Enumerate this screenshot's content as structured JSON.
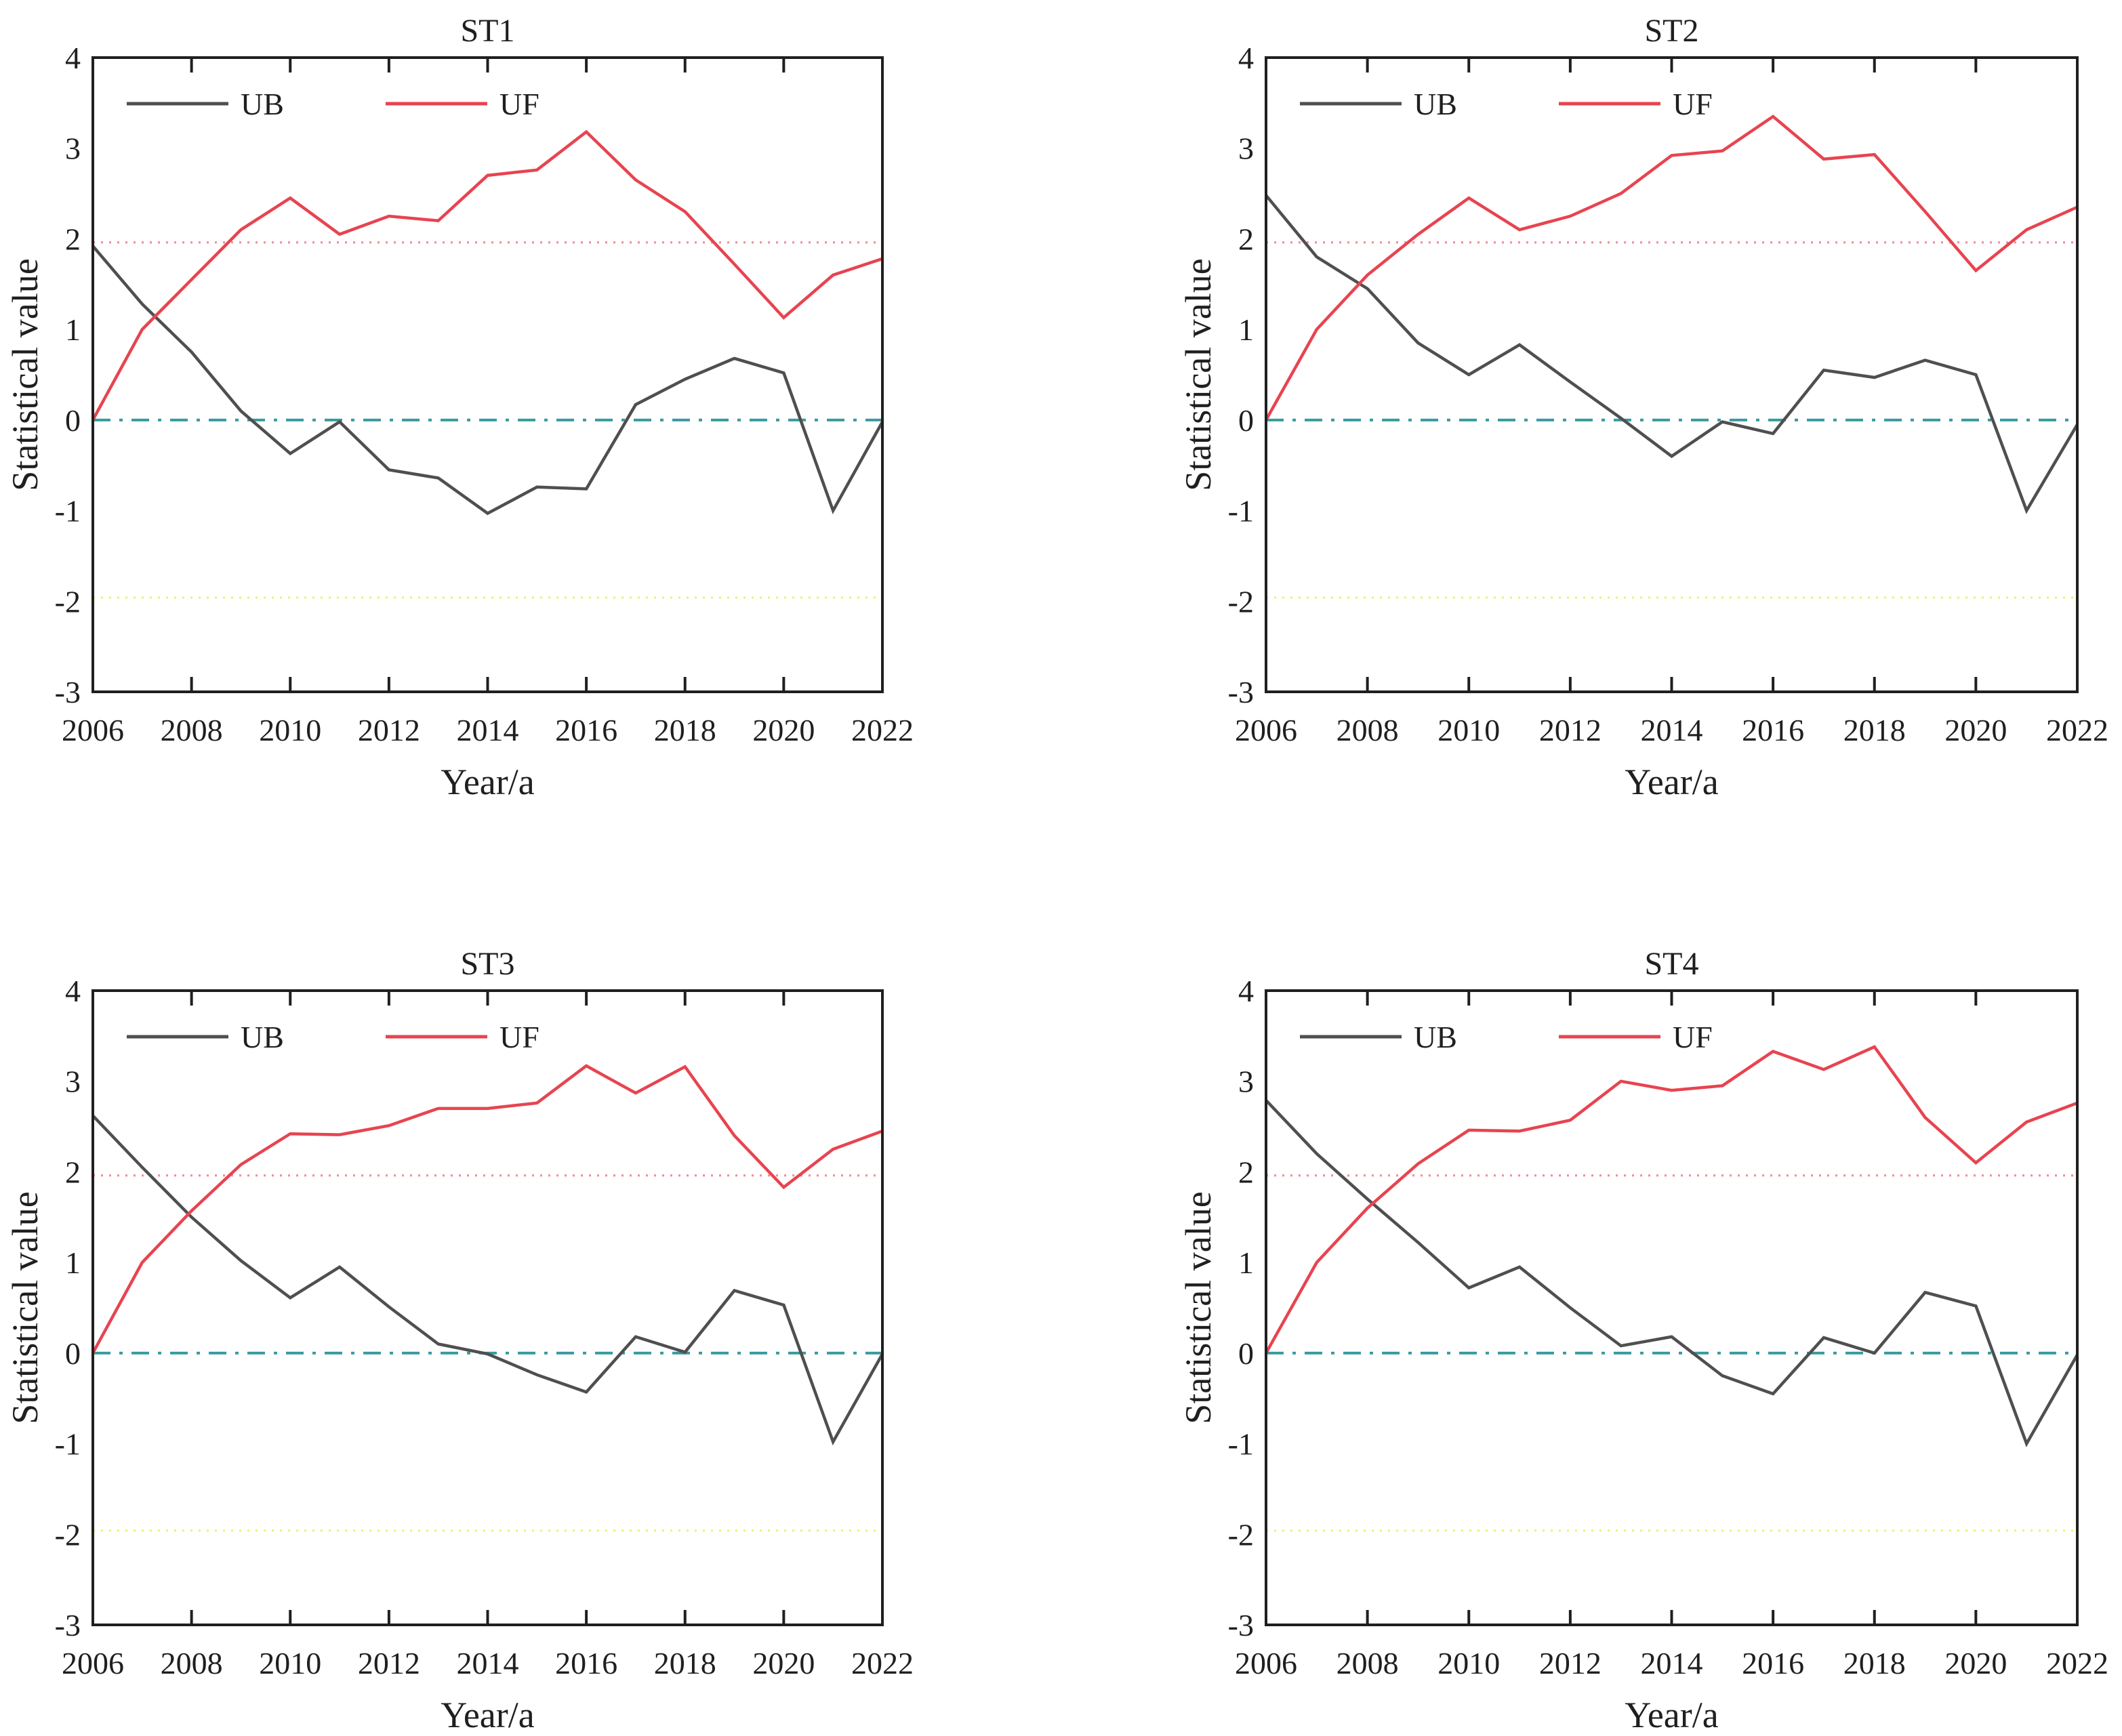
{
  "figure": {
    "ylabel": "Statistical value",
    "xlabel": "Year/a",
    "x_ticks": [
      2006,
      2008,
      2010,
      2012,
      2014,
      2016,
      2018,
      2020,
      2022
    ],
    "y_ticks": [
      4,
      3,
      2,
      1,
      0,
      -1,
      -2,
      -3
    ],
    "xlim": [
      2006,
      2022
    ],
    "ylim": [
      -3,
      4
    ],
    "grid": false,
    "legend_position": "inside-top-left",
    "legend": [
      "UB",
      "UF"
    ],
    "colors": {
      "axis": "#1f1f1f",
      "ub": "#4f4f4f",
      "uf": "#e74450",
      "upper_ref": "#f2909a",
      "zero_ref": "#389ba0",
      "lower_ref": "#eef26e"
    },
    "ref_lines": [
      {
        "name": "upper-critical-line",
        "value": 1.96,
        "style": "dotted",
        "color_key": "upper_ref"
      },
      {
        "name": "zero-line",
        "value": 0,
        "style": "dash-dot",
        "color_key": "zero_ref"
      },
      {
        "name": "lower-critical-line",
        "value": -1.96,
        "style": "dotted",
        "color_key": "lower_ref"
      }
    ]
  },
  "chart_data": [
    {
      "type": "line",
      "title": "ST1",
      "xlabel": "Year/a",
      "ylabel": "Statistical value",
      "xlim": [
        2006,
        2022
      ],
      "ylim": [
        -3,
        4
      ],
      "x": [
        2006,
        2007,
        2008,
        2009,
        2010,
        2011,
        2012,
        2013,
        2014,
        2015,
        2016,
        2017,
        2018,
        2019,
        2020,
        2021,
        2022
      ],
      "series": [
        {
          "name": "UB",
          "color": "#4f4f4f",
          "values": [
            1.92,
            1.28,
            0.75,
            0.1,
            -0.37,
            -0.02,
            -0.55,
            -0.64,
            -1.03,
            -0.74,
            -0.76,
            0.17,
            0.45,
            0.68,
            0.52,
            -1.0,
            -0.02
          ]
        },
        {
          "name": "UF",
          "color": "#e74450",
          "values": [
            0.0,
            1.0,
            1.55,
            2.1,
            2.45,
            2.05,
            2.25,
            2.2,
            2.7,
            2.76,
            3.18,
            2.65,
            2.3,
            1.72,
            1.13,
            1.6,
            1.78
          ]
        }
      ],
      "ref_lines": {
        "upper": 1.96,
        "zero": 0,
        "lower": -1.96
      }
    },
    {
      "type": "line",
      "title": "ST2",
      "xlabel": "Year/a",
      "ylabel": "Statistical value",
      "xlim": [
        2006,
        2022
      ],
      "ylim": [
        -3,
        4
      ],
      "x": [
        2006,
        2007,
        2008,
        2009,
        2010,
        2011,
        2012,
        2013,
        2014,
        2015,
        2016,
        2017,
        2018,
        2019,
        2020,
        2021,
        2022
      ],
      "series": [
        {
          "name": "UB",
          "color": "#4f4f4f",
          "values": [
            2.48,
            1.8,
            1.45,
            0.85,
            0.5,
            0.83,
            0.42,
            0.02,
            -0.4,
            -0.02,
            -0.15,
            0.55,
            0.47,
            0.66,
            0.5,
            -1.0,
            -0.05
          ]
        },
        {
          "name": "UF",
          "color": "#e74450",
          "values": [
            0.0,
            1.0,
            1.6,
            2.05,
            2.45,
            2.1,
            2.25,
            2.5,
            2.92,
            2.97,
            3.35,
            2.88,
            2.93,
            2.3,
            1.65,
            2.1,
            2.35
          ]
        }
      ],
      "ref_lines": {
        "upper": 1.96,
        "zero": 0,
        "lower": -1.96
      }
    },
    {
      "type": "line",
      "title": "ST3",
      "xlabel": "Year/a",
      "ylabel": "Statistical value",
      "xlim": [
        2006,
        2022
      ],
      "ylim": [
        -3,
        4
      ],
      "x": [
        2006,
        2007,
        2008,
        2009,
        2010,
        2011,
        2012,
        2013,
        2014,
        2015,
        2016,
        2017,
        2018,
        2019,
        2020,
        2021,
        2022
      ],
      "series": [
        {
          "name": "UB",
          "color": "#4f4f4f",
          "values": [
            2.62,
            2.05,
            1.5,
            1.02,
            0.61,
            0.95,
            0.51,
            0.1,
            -0.01,
            -0.24,
            -0.43,
            0.18,
            0.01,
            0.69,
            0.53,
            -0.98,
            -0.01
          ]
        },
        {
          "name": "UF",
          "color": "#e74450",
          "values": [
            0.0,
            1.0,
            1.57,
            2.08,
            2.42,
            2.41,
            2.51,
            2.7,
            2.7,
            2.76,
            3.17,
            2.87,
            3.16,
            2.4,
            1.83,
            2.25,
            2.45
          ]
        }
      ],
      "ref_lines": {
        "upper": 1.96,
        "zero": 0,
        "lower": -1.96
      }
    },
    {
      "type": "line",
      "title": "ST4",
      "xlabel": "Year/a",
      "ylabel": "Statistical value",
      "xlim": [
        2006,
        2022
      ],
      "ylim": [
        -3,
        4
      ],
      "x": [
        2006,
        2007,
        2008,
        2009,
        2010,
        2011,
        2012,
        2013,
        2014,
        2015,
        2016,
        2017,
        2018,
        2019,
        2020,
        2021,
        2022
      ],
      "series": [
        {
          "name": "UB",
          "color": "#4f4f4f",
          "values": [
            2.79,
            2.2,
            1.7,
            1.22,
            0.72,
            0.95,
            0.5,
            0.08,
            0.18,
            -0.25,
            -0.45,
            0.17,
            0.0,
            0.67,
            0.52,
            -1.0,
            -0.02
          ]
        },
        {
          "name": "UF",
          "color": "#e74450",
          "values": [
            0.0,
            1.0,
            1.6,
            2.09,
            2.46,
            2.45,
            2.57,
            3.0,
            2.9,
            2.95,
            3.33,
            3.13,
            3.38,
            2.6,
            2.1,
            2.55,
            2.76
          ]
        }
      ],
      "ref_lines": {
        "upper": 1.96,
        "zero": 0,
        "lower": -1.96
      }
    }
  ]
}
